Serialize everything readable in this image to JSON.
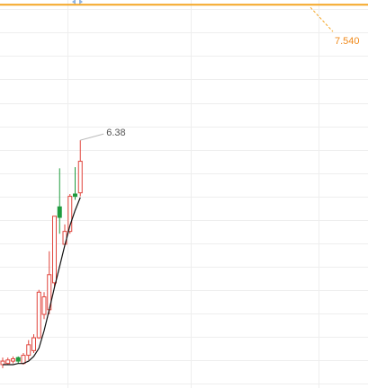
{
  "chart_data": {
    "type": "candlestick",
    "categories": [
      null,
      null,
      null,
      null,
      null,
      null,
      null,
      null,
      null,
      null,
      null,
      null,
      null,
      null,
      null,
      null
    ],
    "open": [
      4.46,
      4.47,
      4.49,
      4.52,
      4.47,
      4.54,
      4.58,
      4.69,
      4.89,
      4.93,
      5.16,
      5.81,
      5.49,
      5.6,
      5.92,
      5.93
    ],
    "high": [
      4.52,
      4.52,
      4.53,
      4.53,
      4.56,
      4.67,
      4.72,
      5.1,
      5.08,
      5.43,
      5.73,
      6.14,
      5.66,
      5.92,
      6.15,
      6.38
    ],
    "low": [
      4.43,
      4.46,
      4.47,
      4.47,
      4.46,
      4.5,
      4.56,
      4.68,
      4.85,
      4.89,
      5.13,
      5.58,
      5.47,
      5.58,
      5.87,
      5.9
    ],
    "close": [
      4.49,
      4.5,
      4.51,
      4.49,
      4.54,
      4.63,
      4.69,
      5.08,
      5.04,
      5.23,
      5.73,
      5.72,
      5.6,
      5.9,
      5.9,
      6.2
    ],
    "up_color": "#e0443c",
    "down_color": "#1f9a3e",
    "ma": {
      "color": "#111111",
      "values": [
        4.46,
        4.46,
        4.46,
        4.47,
        4.47,
        4.49,
        4.53,
        4.6,
        4.75,
        4.93,
        5.12,
        5.3,
        5.48,
        5.65,
        5.78,
        5.89
      ]
    },
    "price_line": {
      "value": 7.54,
      "label": "7.540",
      "color": "#f5a623"
    },
    "ylim": [
      4.26,
      7.58
    ],
    "yticks": [
      4.3,
      4.5,
      4.7,
      4.9,
      5.1,
      5.3,
      5.5,
      5.7,
      5.9,
      6.1,
      6.3,
      6.5,
      6.7,
      6.9,
      7.1,
      7.3,
      7.5
    ],
    "grid": true
  }
}
